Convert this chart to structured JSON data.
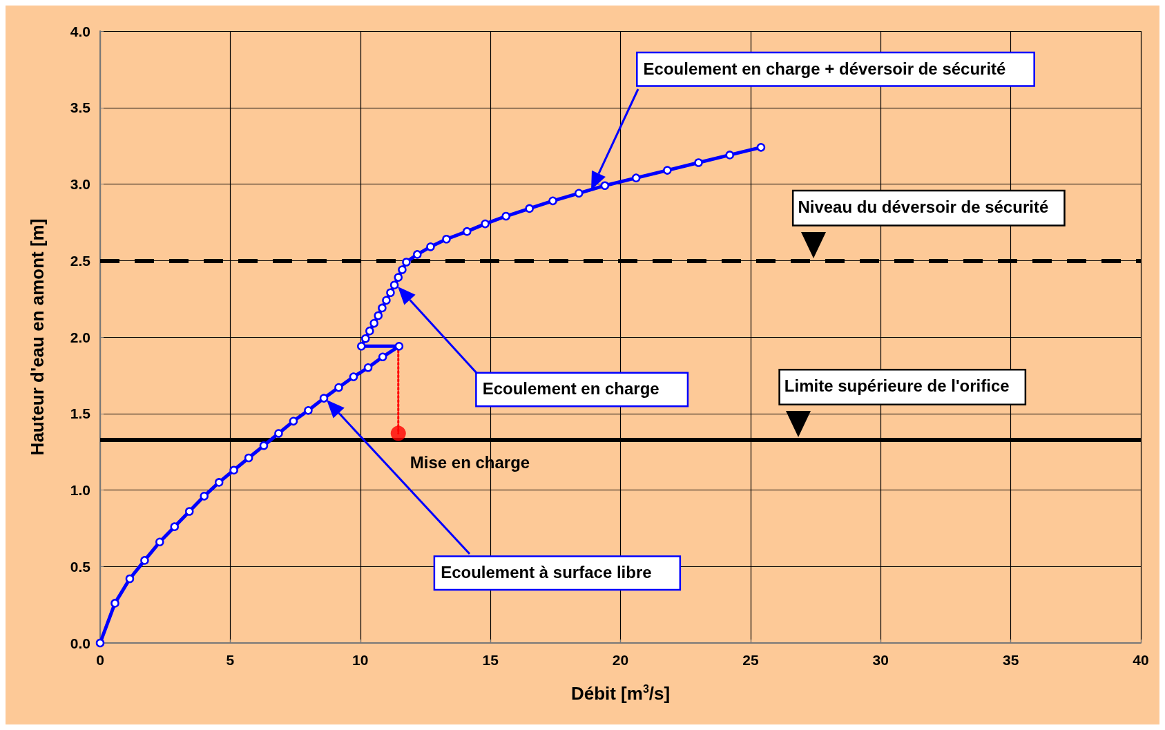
{
  "chart_data": {
    "type": "line",
    "xlabel": "Débit [m$^{3}$/s]",
    "ylabel": "Hauteur d'eau en amont [m]",
    "xlim": [
      0,
      40
    ],
    "xticks": [
      0,
      5,
      10,
      15,
      20,
      25,
      30,
      35,
      40
    ],
    "ylim": [
      0,
      4
    ],
    "yticks": [
      {
        "value": 0,
        "label": "0.0"
      },
      {
        "value": 0.5,
        "label": "0.5"
      },
      {
        "value": 1,
        "label": "1.0"
      },
      {
        "value": 1.5,
        "label": "1.5"
      },
      {
        "value": 2,
        "label": "2.0"
      },
      {
        "value": 2.5,
        "label": "2.5"
      },
      {
        "value": 3,
        "label": "3.0"
      },
      {
        "value": 3.5,
        "label": "3.5"
      },
      {
        "value": 4,
        "label": "4.0"
      }
    ],
    "grid": true,
    "marker": "circle",
    "line_style": "solid",
    "series": [
      {
        "color": "#0000ff",
        "x": [
          0,
          0.57,
          1.14,
          1.71,
          2.29,
          2.86,
          3.43,
          4.0,
          4.57,
          5.14,
          5.71,
          6.29,
          6.86,
          7.43,
          8.0,
          8.6,
          9.17,
          9.74,
          10.3,
          10.86,
          11.49,
          10.04,
          10.2,
          10.36,
          10.53,
          10.69,
          10.84,
          11.0,
          11.16,
          11.31,
          11.46,
          11.61,
          11.77,
          12.19,
          12.7,
          13.31,
          14.1,
          14.8,
          15.6,
          16.5,
          17.4,
          18.4,
          19.4,
          20.6,
          21.8,
          23.0,
          24.2,
          25.4
        ],
        "values": [
          0,
          0.26,
          0.42,
          0.54,
          0.66,
          0.76,
          0.86,
          0.96,
          1.05,
          1.13,
          1.21,
          1.29,
          1.37,
          1.45,
          1.52,
          1.6,
          1.67,
          1.74,
          1.8,
          1.87,
          1.94,
          1.94,
          1.99,
          2.04,
          2.09,
          2.14,
          2.19,
          2.24,
          2.29,
          2.34,
          2.39,
          2.44,
          2.49,
          2.54,
          2.59,
          2.64,
          2.69,
          2.74,
          2.79,
          2.84,
          2.89,
          2.94,
          2.99,
          3.04,
          3.09,
          3.14,
          3.19,
          3.24
        ]
      },
      {
        "type": "line",
        "color": "#ff0000",
        "x": [
          11.46,
          11.46
        ],
        "values": [
          1.94,
          1.37
        ],
        "marker": "none",
        "line_style": "dotted"
      },
      {
        "type": "scatter",
        "color": "#ff0000",
        "x": [
          11.46
        ],
        "values": [
          1.37
        ],
        "marker": "circle"
      }
    ],
    "ref_lines": [
      {
        "axis": "y",
        "value": 2.5,
        "label": "Niveau du déversoir de sécurité",
        "color": "#000000",
        "line_style": "dashed"
      },
      {
        "axis": "y",
        "value": 1.33,
        "label": "Limite supérieure de l'orifice",
        "color": "#000000",
        "line_style": "solid"
      }
    ],
    "annotations": [
      "Ecoulement en charge + déversoir de sécurité",
      "Ecoulement en charge",
      "Ecoulement à surface libre",
      {
        "text": "Mise en charge",
        "x": 11.46,
        "y": 1.37
      }
    ]
  }
}
